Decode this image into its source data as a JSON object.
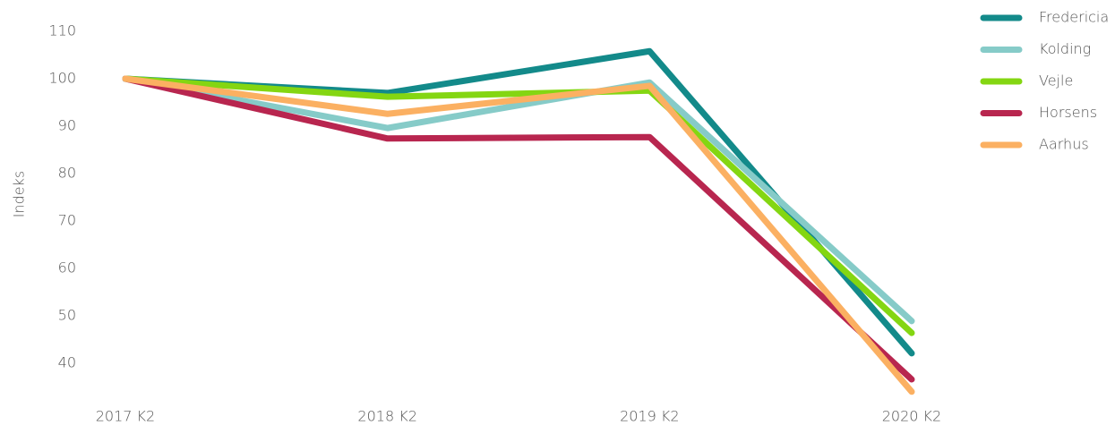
{
  "chart_data": {
    "type": "line",
    "categories": [
      "2017 K2",
      "2018 K2",
      "2019 K2",
      "2020 K2"
    ],
    "y_label": "Indeks",
    "ylim": [
      33,
      112
    ],
    "yticks": [
      40,
      50,
      60,
      70,
      80,
      90,
      100,
      110
    ],
    "grid": false,
    "legend": "top-right",
    "series": [
      {
        "name": "Fredericia",
        "color": "#138a8a",
        "values": [
          100,
          97,
          105.8,
          42.1
        ]
      },
      {
        "name": "Kolding",
        "color": "#86cbc8",
        "values": [
          100,
          89.6,
          99.2,
          48.9
        ]
      },
      {
        "name": "Vejle",
        "color": "#84d612",
        "values": [
          100,
          96.2,
          97.5,
          46.4
        ]
      },
      {
        "name": "Horsens",
        "color": "#b8264f",
        "values": [
          100,
          87.4,
          87.7,
          36.6
        ]
      },
      {
        "name": "Aarhus",
        "color": "#fbb062",
        "values": [
          100,
          92.6,
          98.5,
          34
        ]
      }
    ]
  }
}
